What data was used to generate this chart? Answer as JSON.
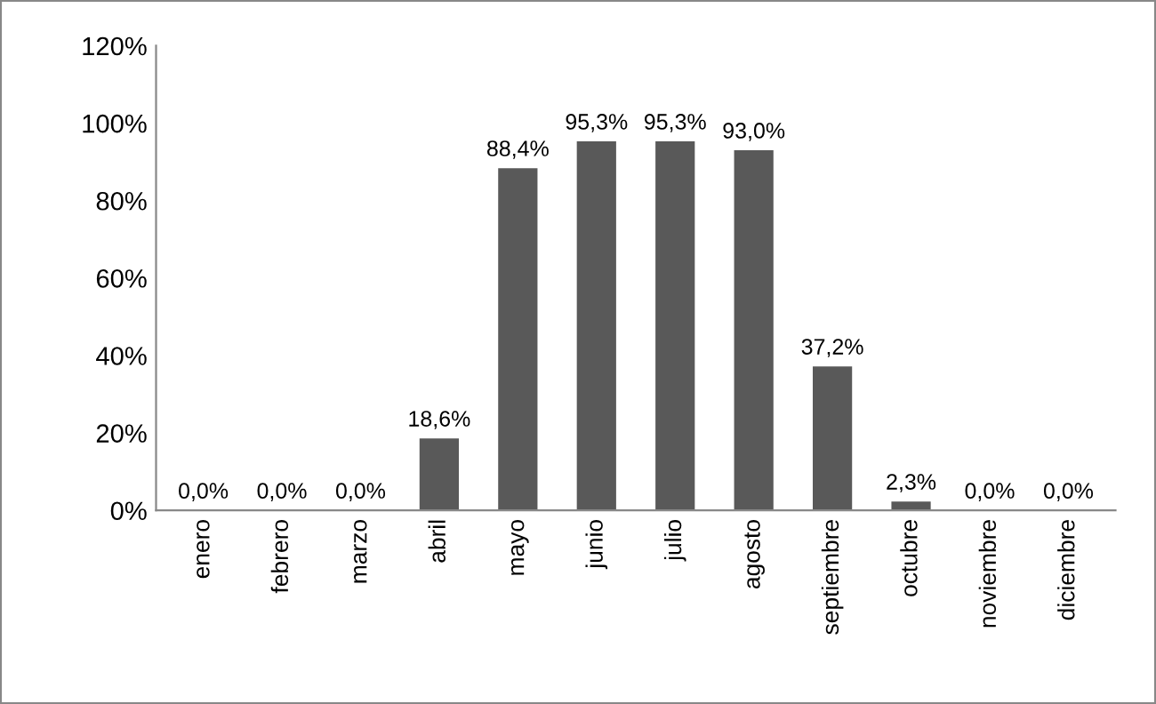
{
  "chart_data": {
    "type": "bar",
    "categories": [
      "enero",
      "febrero",
      "marzo",
      "abril",
      "mayo",
      "junio",
      "julio",
      "agosto",
      "septiembre",
      "octubre",
      "noviembre",
      "diciembre"
    ],
    "values": [
      0.0,
      0.0,
      0.0,
      18.6,
      88.4,
      95.3,
      95.3,
      93.0,
      37.2,
      2.3,
      0.0,
      0.0
    ],
    "value_labels": [
      "0,0%",
      "0,0%",
      "0,0%",
      "18,6%",
      "88,4%",
      "95,3%",
      "95,3%",
      "93,0%",
      "37,2%",
      "2,3%",
      "0,0%",
      "0,0%"
    ],
    "color": "#595959",
    "ylim": [
      0,
      120
    ],
    "yticks": [
      {
        "value": 0,
        "label": "0%"
      },
      {
        "value": 20,
        "label": "20%"
      },
      {
        "value": 40,
        "label": "40%"
      },
      {
        "value": 60,
        "label": "60%"
      },
      {
        "value": 80,
        "label": "80%"
      },
      {
        "value": 100,
        "label": "100%"
      },
      {
        "value": 120,
        "label": "120%"
      }
    ],
    "grid": false,
    "legend": false
  }
}
